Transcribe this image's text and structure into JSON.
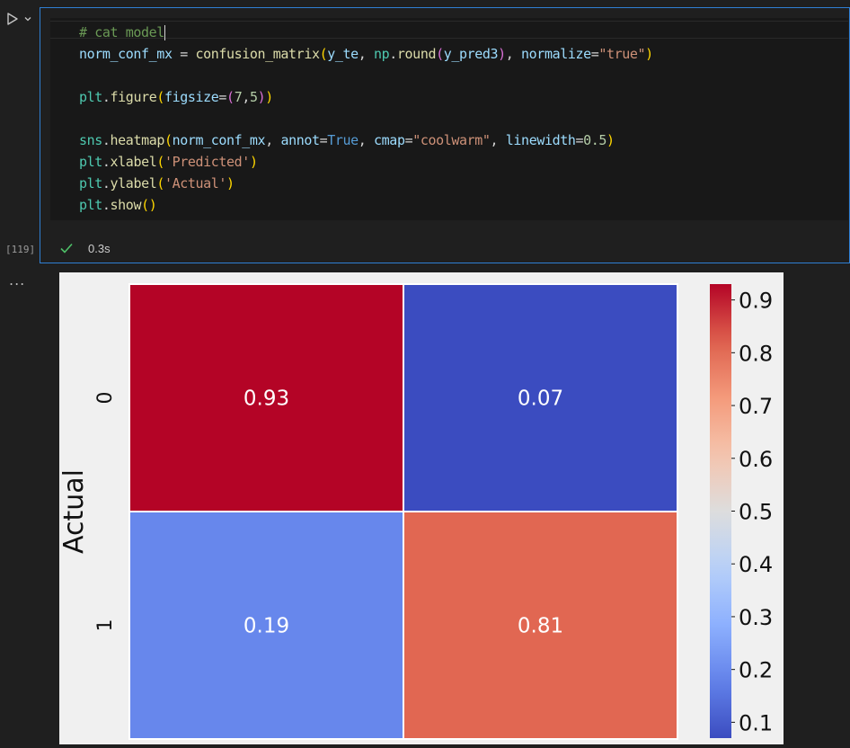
{
  "cell": {
    "execution_count": "[119]",
    "status_time": "0.3s",
    "more_label": "...",
    "code_lines": [
      [
        {
          "t": "# cat model",
          "c": "#6a9955"
        }
      ],
      [
        {
          "t": "norm_conf_mx",
          "c": "#9cdcfe"
        },
        {
          "t": " = ",
          "c": "#d4d4d4"
        },
        {
          "t": "confusion_matrix",
          "c": "#dcdcaa"
        },
        {
          "t": "(",
          "c": "#ffd700"
        },
        {
          "t": "y_te",
          "c": "#9cdcfe"
        },
        {
          "t": ", ",
          "c": "#d4d4d4"
        },
        {
          "t": "np",
          "c": "#4ec9b0"
        },
        {
          "t": ".",
          "c": "#d4d4d4"
        },
        {
          "t": "round",
          "c": "#dcdcaa"
        },
        {
          "t": "(",
          "c": "#da70d6"
        },
        {
          "t": "y_pred3",
          "c": "#9cdcfe"
        },
        {
          "t": ")",
          "c": "#da70d6"
        },
        {
          "t": ", ",
          "c": "#d4d4d4"
        },
        {
          "t": "normalize",
          "c": "#9cdcfe"
        },
        {
          "t": "=",
          "c": "#d4d4d4"
        },
        {
          "t": "\"true\"",
          "c": "#ce9178"
        },
        {
          "t": ")",
          "c": "#ffd700"
        }
      ],
      [],
      [
        {
          "t": "plt",
          "c": "#4ec9b0"
        },
        {
          "t": ".",
          "c": "#d4d4d4"
        },
        {
          "t": "figure",
          "c": "#dcdcaa"
        },
        {
          "t": "(",
          "c": "#ffd700"
        },
        {
          "t": "figsize",
          "c": "#9cdcfe"
        },
        {
          "t": "=",
          "c": "#d4d4d4"
        },
        {
          "t": "(",
          "c": "#da70d6"
        },
        {
          "t": "7",
          "c": "#b5cea8"
        },
        {
          "t": ",",
          "c": "#d4d4d4"
        },
        {
          "t": "5",
          "c": "#b5cea8"
        },
        {
          "t": ")",
          "c": "#da70d6"
        },
        {
          "t": ")",
          "c": "#ffd700"
        }
      ],
      [],
      [
        {
          "t": "sns",
          "c": "#4ec9b0"
        },
        {
          "t": ".",
          "c": "#d4d4d4"
        },
        {
          "t": "heatmap",
          "c": "#dcdcaa"
        },
        {
          "t": "(",
          "c": "#ffd700"
        },
        {
          "t": "norm_conf_mx",
          "c": "#9cdcfe"
        },
        {
          "t": ", ",
          "c": "#d4d4d4"
        },
        {
          "t": "annot",
          "c": "#9cdcfe"
        },
        {
          "t": "=",
          "c": "#d4d4d4"
        },
        {
          "t": "True",
          "c": "#569cd6"
        },
        {
          "t": ", ",
          "c": "#d4d4d4"
        },
        {
          "t": "cmap",
          "c": "#9cdcfe"
        },
        {
          "t": "=",
          "c": "#d4d4d4"
        },
        {
          "t": "\"coolwarm\"",
          "c": "#ce9178"
        },
        {
          "t": ", ",
          "c": "#d4d4d4"
        },
        {
          "t": "linewidth",
          "c": "#9cdcfe"
        },
        {
          "t": "=",
          "c": "#d4d4d4"
        },
        {
          "t": "0.5",
          "c": "#b5cea8"
        },
        {
          "t": ")",
          "c": "#ffd700"
        }
      ],
      [
        {
          "t": "plt",
          "c": "#4ec9b0"
        },
        {
          "t": ".",
          "c": "#d4d4d4"
        },
        {
          "t": "xlabel",
          "c": "#dcdcaa"
        },
        {
          "t": "(",
          "c": "#ffd700"
        },
        {
          "t": "'Predicted'",
          "c": "#ce9178"
        },
        {
          "t": ")",
          "c": "#ffd700"
        }
      ],
      [
        {
          "t": "plt",
          "c": "#4ec9b0"
        },
        {
          "t": ".",
          "c": "#d4d4d4"
        },
        {
          "t": "ylabel",
          "c": "#dcdcaa"
        },
        {
          "t": "(",
          "c": "#ffd700"
        },
        {
          "t": "'Actual'",
          "c": "#ce9178"
        },
        {
          "t": ")",
          "c": "#ffd700"
        }
      ],
      [
        {
          "t": "plt",
          "c": "#4ec9b0"
        },
        {
          "t": ".",
          "c": "#d4d4d4"
        },
        {
          "t": "show",
          "c": "#dcdcaa"
        },
        {
          "t": "(",
          "c": "#ffd700"
        },
        {
          "t": ")",
          "c": "#ffd700"
        }
      ]
    ]
  },
  "icons": {
    "run": "run-icon",
    "chevron": "chevron-down-icon",
    "status": "check-icon"
  },
  "colors": {
    "cell_border": "#2f7fd3",
    "status_check": "#4ec068",
    "figure_bg": "#f0f0f0"
  },
  "chart_data": {
    "type": "heatmap",
    "ylabel": "Actual",
    "xlabel": "",
    "row_labels": [
      "0",
      "1"
    ],
    "col_labels": [],
    "values": [
      [
        0.93,
        0.07
      ],
      [
        0.19,
        0.81
      ]
    ],
    "annotations": [
      [
        "0.93",
        "0.07"
      ],
      [
        "0.19",
        "0.81"
      ]
    ],
    "colormap": "coolwarm",
    "colorbar": {
      "min": 0.07,
      "max": 0.93,
      "ticks": [
        0.1,
        0.2,
        0.3,
        0.4,
        0.5,
        0.6,
        0.7,
        0.8,
        0.9
      ],
      "tick_labels": [
        "0.1",
        "0.2",
        "0.3",
        "0.4",
        "0.5",
        "0.6",
        "0.7",
        "0.8",
        "0.9"
      ]
    }
  }
}
